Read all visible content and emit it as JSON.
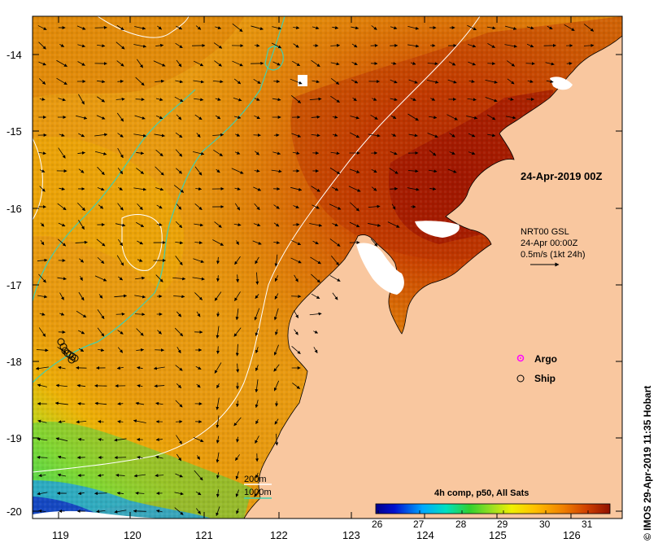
{
  "map": {
    "date_label": "24-Apr-2019 00Z",
    "current_info": {
      "line1": "NRT00 GSL",
      "line2": "24-Apr 00:00Z",
      "line3": "0.5m/s (1kt 24h)"
    },
    "legend": {
      "argo": "Argo",
      "ship": "Ship"
    },
    "contours": {
      "c200": "200m",
      "c1000": "1000m"
    },
    "colorbar": {
      "title": "4h comp, p50, All Sats",
      "ticks": [
        "26",
        "27",
        "28",
        "29",
        "30",
        "31"
      ]
    },
    "x_ticks": [
      "119",
      "120",
      "121",
      "122",
      "123",
      "124",
      "125",
      "126"
    ],
    "y_ticks": [
      "-14",
      "-15",
      "-16",
      "-17",
      "-18",
      "-19",
      "-20"
    ],
    "credit": "© IMOS 29-Apr-2019 11:35 Hobart",
    "colors": {
      "land": "#f9c79f",
      "contour_200": "#ffffff",
      "contour_1000": "#40d0b0",
      "argo": "#ff00ff"
    }
  }
}
